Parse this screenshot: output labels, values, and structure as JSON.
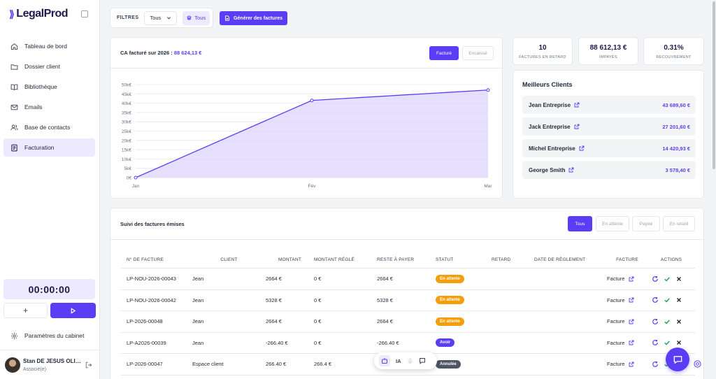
{
  "app": {
    "name": "LegalProd"
  },
  "sidebar": {
    "items": [
      {
        "label": "Tableau de bord",
        "icon": "home-icon"
      },
      {
        "label": "Dossier client",
        "icon": "folder-icon"
      },
      {
        "label": "Bibliothèque",
        "icon": "book-icon"
      },
      {
        "label": "Emails",
        "icon": "mail-icon"
      },
      {
        "label": "Base de contacts",
        "icon": "users-icon"
      },
      {
        "label": "Facturation",
        "icon": "receipt-icon",
        "active": true
      }
    ],
    "timer": "00:00:00",
    "add_label": "+",
    "settings_label": "Paramètres du cabinet",
    "user": {
      "name": "Stan DE JESUS OLIVEIRA",
      "role": "Associé(e)"
    }
  },
  "filters": {
    "label": "FILTRES",
    "select_value": "Tous",
    "chip": "Tous"
  },
  "generate_button": "Générer des factures",
  "chart": {
    "title": "CA facturé sur 2026 :",
    "total": "88 624,13 €",
    "toggle_on": "Facturé",
    "toggle_off": "Encaissé"
  },
  "chart_data": {
    "type": "area",
    "categories": [
      "Jan",
      "Fév",
      "Mar"
    ],
    "values": [
      0,
      41500,
      47100
    ],
    "ylim": [
      0,
      50000
    ],
    "yticks": [
      "0€",
      "5k€",
      "10k€",
      "15k€",
      "20k€",
      "25k€",
      "30k€",
      "35k€",
      "40k€",
      "45k€",
      "50k€"
    ],
    "grid": true,
    "colors": {
      "line": "#5b3df5",
      "fill": "#ddd6fe"
    }
  },
  "kpis": [
    {
      "value": "10",
      "label": "FACTURES EN RETARD"
    },
    {
      "value": "88 612,13 €",
      "label": "IMPAYÉS"
    },
    {
      "value": "0.31%",
      "label": "RECOUVREMENT"
    }
  ],
  "best_clients": {
    "title": "Meilleurs Clients",
    "items": [
      {
        "name": "Jean Entreprise",
        "amount": "43 689,60 €"
      },
      {
        "name": "Jack Entreprise",
        "amount": "27 201,60 €"
      },
      {
        "name": "Michel Entreprise",
        "amount": "14 420,93 €"
      },
      {
        "name": "George Smith",
        "amount": "3 578,40 €"
      }
    ]
  },
  "invoices": {
    "title": "Suivi des factures émises",
    "filters": [
      "Tous",
      "En attente",
      "Payée",
      "En retard"
    ],
    "columns": [
      "N° DE FACTURE",
      "CLIENT",
      "MONTANT",
      "MONTANT RÉGLÉ",
      "RESTE À PAYER",
      "STATUT",
      "RETARD",
      "DATE DE RÈGLEMENT",
      "FACTURE",
      "ACTIONS"
    ],
    "rows": [
      {
        "num": "LP-NOU-2026-00043",
        "client": "Jean",
        "amount": "2664 €",
        "paid": "0 €",
        "rest": "2664 €",
        "status": "En attente",
        "status_type": "wait",
        "delay": "",
        "date": "",
        "facture": "Facture"
      },
      {
        "num": "LP-NOU-2026-00042",
        "client": "Jean",
        "amount": "5328 €",
        "paid": "0 €",
        "rest": "5328 €",
        "status": "En attente",
        "status_type": "wait",
        "delay": "",
        "date": "",
        "facture": "Facture"
      },
      {
        "num": "LP-2026-00048",
        "client": "Jean",
        "amount": "2664 €",
        "paid": "0 €",
        "rest": "2664 €",
        "status": "En attente",
        "status_type": "wait",
        "delay": "",
        "date": "",
        "facture": "Facture"
      },
      {
        "num": "LP-A2026-00039",
        "client": "Jean",
        "amount": "-266.40 €",
        "paid": "0 €",
        "rest": "-266.40 €",
        "status": "Avoir",
        "status_type": "avoir",
        "delay": "",
        "date": "",
        "facture": "Facture"
      },
      {
        "num": "LP-2026-00047",
        "client": "Espace client",
        "amount": "266.40 €",
        "paid": "266.4 €",
        "rest": "",
        "status": "Annulée",
        "status_type": "ann",
        "delay": "",
        "date": "",
        "facture": "Facture"
      }
    ]
  },
  "ia_bar": {
    "label": "IA"
  }
}
